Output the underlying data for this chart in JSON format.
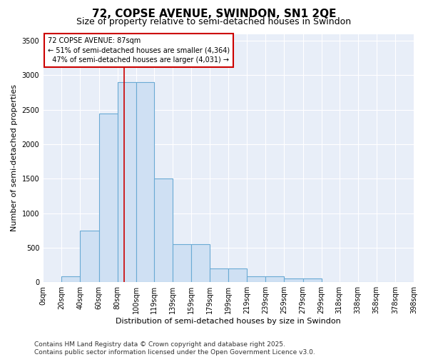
{
  "title_line1": "72, COPSE AVENUE, SWINDON, SN1 2QE",
  "title_line2": "Size of property relative to semi-detached houses in Swindon",
  "xlabel": "Distribution of semi-detached houses by size in Swindon",
  "ylabel": "Number of semi-detached properties",
  "bins": [
    0,
    20,
    40,
    60,
    80,
    100,
    119,
    139,
    159,
    179,
    199,
    219,
    239,
    259,
    279,
    299,
    318,
    338,
    358,
    378,
    398
  ],
  "bin_labels": [
    "0sqm",
    "20sqm",
    "40sqm",
    "60sqm",
    "80sqm",
    "100sqm",
    "119sqm",
    "139sqm",
    "159sqm",
    "179sqm",
    "199sqm",
    "219sqm",
    "239sqm",
    "259sqm",
    "279sqm",
    "299sqm",
    "318sqm",
    "338sqm",
    "358sqm",
    "378sqm",
    "398sqm"
  ],
  "values": [
    0,
    80,
    750,
    2450,
    2900,
    2900,
    1500,
    550,
    550,
    200,
    200,
    80,
    80,
    50,
    50,
    5,
    5,
    0,
    0,
    0
  ],
  "bar_color": "#cfe0f3",
  "bar_edge_color": "#6aaad4",
  "property_size": 87,
  "property_label": "72 COPSE AVENUE: 87sqm",
  "pct_smaller": 51,
  "pct_smaller_n": 4364,
  "pct_larger": 47,
  "pct_larger_n": 4031,
  "vline_color": "#cc0000",
  "annotation_box_color": "#cc0000",
  "ylim": [
    0,
    3600
  ],
  "yticks": [
    0,
    500,
    1000,
    1500,
    2000,
    2500,
    3000,
    3500
  ],
  "background_color": "#e8eef8",
  "footer": "Contains HM Land Registry data © Crown copyright and database right 2025.\nContains public sector information licensed under the Open Government Licence v3.0.",
  "title_fontsize": 11,
  "subtitle_fontsize": 9,
  "axis_label_fontsize": 8,
  "tick_fontsize": 7,
  "annotation_fontsize": 7,
  "footer_fontsize": 6.5
}
